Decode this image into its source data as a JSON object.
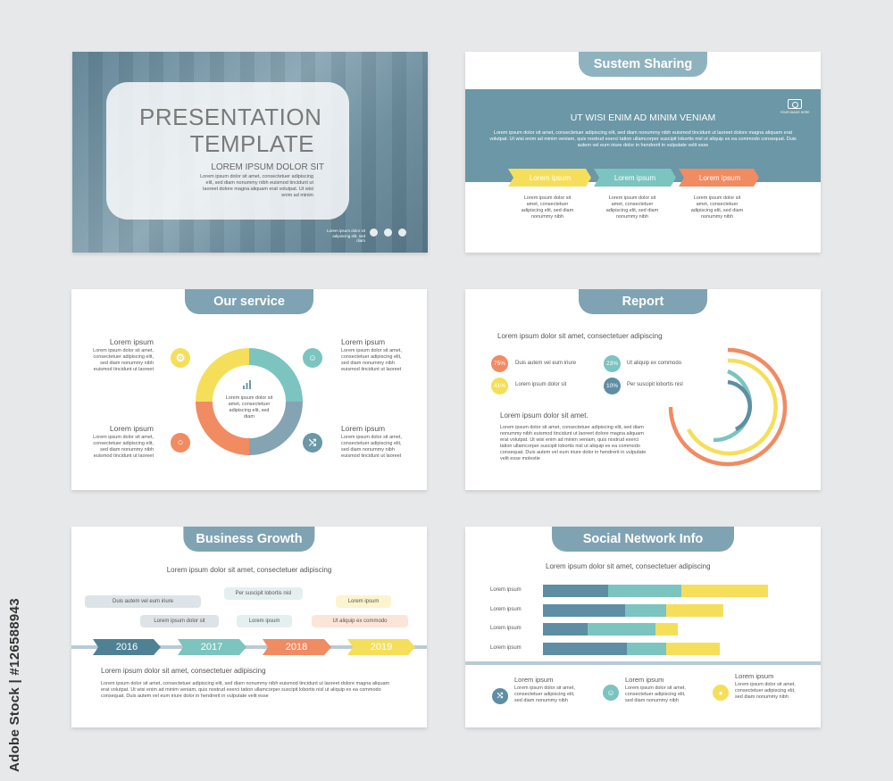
{
  "side_label": "Adobe Stock | #126588943",
  "colors": {
    "teal": "#7bc4bf",
    "blue": "#5e8ea3",
    "yellow": "#f5df5a",
    "orange": "#f18b62",
    "pale": "#7fa3b3"
  },
  "slide1": {
    "title1": "PRESENTATION",
    "title2": "TEMPLATE",
    "subtitle": "LOREM IPSUM DOLOR SIT",
    "body": "Lorem ipsum dolor sit amet, consectetuer adipiscing elit, sed diam nonummy nibh euismod tincidunt ut laoreet dolore magna aliquam erat volutpat. Ut wisi enim ad minim",
    "footer": "Lorem ipsum dolor sit adipiscing elit, sed diam"
  },
  "slide2": {
    "tab": "Sustem Sharing",
    "camera_caption": "YOUR IMAGE HERE",
    "heading": "UT WISI ENIM AD MINIM VENIAM",
    "body": "Lorem ipsum dolor sit amet, consectetuer adipiscing elit, sed diam nonummy nibh euismod tincidunt ut laoreet dolore magna aliquam erat volutpat. Ut wisi enim ad minim veniam, quis nostrud exerci tation ullamcorper suscipit lobortis nisl ut aliquip ex ea commodo consequat. Duis autem vel eum iriure dolor in hendrerit in vulputate velit esse",
    "arrows": [
      "Lorem ipsum",
      "Lorem ipsum",
      "Lorem ipsum"
    ],
    "arrow_text": "Lorem ipsum dolor sit amet, consectetuer adipiscing elit, sed diam nonummy nibh"
  },
  "slide3": {
    "tab": "Our service",
    "items": [
      {
        "title": "Lorem ipsum",
        "text": "Lorem ipsum dolor sit amet, consectetuer adipiscing elit, sed diam nonummy nibh euismod tincidunt ut laoreet"
      },
      {
        "title": "Lorem ipsum",
        "text": "Lorem ipsum dolor sit amet, consectetuer adipiscing elit, sed diam nonummy nibh euismod tincidunt ut laoreet"
      },
      {
        "title": "Lorem ipsum",
        "text": "Lorem ipsum dolor sit amet, consectetuer adipiscing elit, sed diam nonummy nibh euismod tincidunt ut laoreet"
      },
      {
        "title": "Lorem ipsum",
        "text": "Lorem ipsum dolor sit amet, consectetuer adipiscing elit, sed diam nonummy nibh euismod tincidunt ut laoreet"
      }
    ],
    "center_text": "Lorem ipsum dolor sit amet, consectetuer adipiscing elit, sed diam"
  },
  "slide4": {
    "tab": "Report",
    "heading": "Lorem ipsum dolor sit amet, consectetuer adipiscing",
    "stats": [
      {
        "pct": "75%",
        "label": "Duis autem vel eum iriure",
        "color": "#f18b62"
      },
      {
        "pct": "23%",
        "label": "Ut aliquip ex commodo",
        "color": "#7bc4bf"
      },
      {
        "pct": "41%",
        "label": "Lorem ipsum dolor sit",
        "color": "#f5df5a"
      },
      {
        "pct": "10%",
        "label": "Per suscipit lobortis nisl",
        "color": "#5e8ea3"
      }
    ],
    "subheading": "Lorem ipsum dolor sit amet.",
    "body": "Lorem ipsum dolor sit amet, consectetuer adipiscing elit, sed diam nonummy nibh euismod tincidunt ut laoreet dolore magna aliquam erat volutpat. Ut wisi enim ad minim veniam, quis nostrud exerci tation ullamcorper suscipit lobortis nisl ut aliquip ex ea commodo consequat. Duis autem vel eum iriure dolor in hendrerit in vulputate velit esse molestie"
  },
  "slide5": {
    "tab": "Business Growth",
    "heading": "Lorem ipsum dolor sit amet, consectetuer adipiscing",
    "pills": [
      {
        "text": "Duis autem vel eum iriure",
        "color": "#dde3e7"
      },
      {
        "text": "Per suscipit lobortis nisl",
        "color": "#e4efef"
      },
      {
        "text": "Lorem ipsum",
        "color": "#fbf4cf"
      },
      {
        "text": "Lorem ipsum dolor sit",
        "color": "#dde3e7"
      },
      {
        "text": "Lorem ipsum",
        "color": "#e4efef"
      },
      {
        "text": "Ut aliquip ex commodo",
        "color": "#fde4d9"
      }
    ],
    "years": [
      "2016",
      "2017",
      "2018",
      "2019"
    ],
    "subheading": "Lorem ipsum dolor sit amet, consectetuer adipiscing",
    "body": "Lorem ipsum dolor sit amet, consectetuer adipiscing elit, sed diam nonummy nibh euismod tincidunt ut laoreet dolore magna aliquam erat volutpat. Ut wisi enim ad minim veniam, quis nostrud exerci tation ullamcorper suscipit lobortis nisl ut aliquip ex ea commodo consequat. Duis autem vel eum iriure dolor in hendrerit in vulputate velit esse"
  },
  "slide6": {
    "tab": "Social Network Info",
    "heading": "Lorem ipsum dolor sit amet, consectetuer adipiscing",
    "bars": [
      {
        "label": "Lorem ipsum",
        "segments": [
          73,
          82,
          97
        ]
      },
      {
        "label": "Lorem ipsum",
        "segments": [
          92,
          46,
          64
        ]
      },
      {
        "label": "Lorem ipsum",
        "segments": [
          50,
          76,
          25
        ]
      },
      {
        "label": "Lorem ipsum",
        "segments": [
          94,
          44,
          60
        ]
      }
    ],
    "bar_colors": [
      "#5e8ea3",
      "#7bc4bf",
      "#f5df5a"
    ],
    "footer_items": [
      {
        "title": "Lorem ipsum",
        "text": "Lorem ipsum dolor sit amet, consectetuer adipiscing elit, sed diam nonummy nibh"
      },
      {
        "title": "Lorem ipsum",
        "text": "Lorem ipsum dolor sit amet, consectetuer adipiscing elit, sed diam nonummy nibh"
      },
      {
        "title": "Lorem ipsum",
        "text": "Lorem ipsum dolor sit amet, consectetuer adipiscing elit, sed diam nonummy nibh"
      }
    ]
  }
}
